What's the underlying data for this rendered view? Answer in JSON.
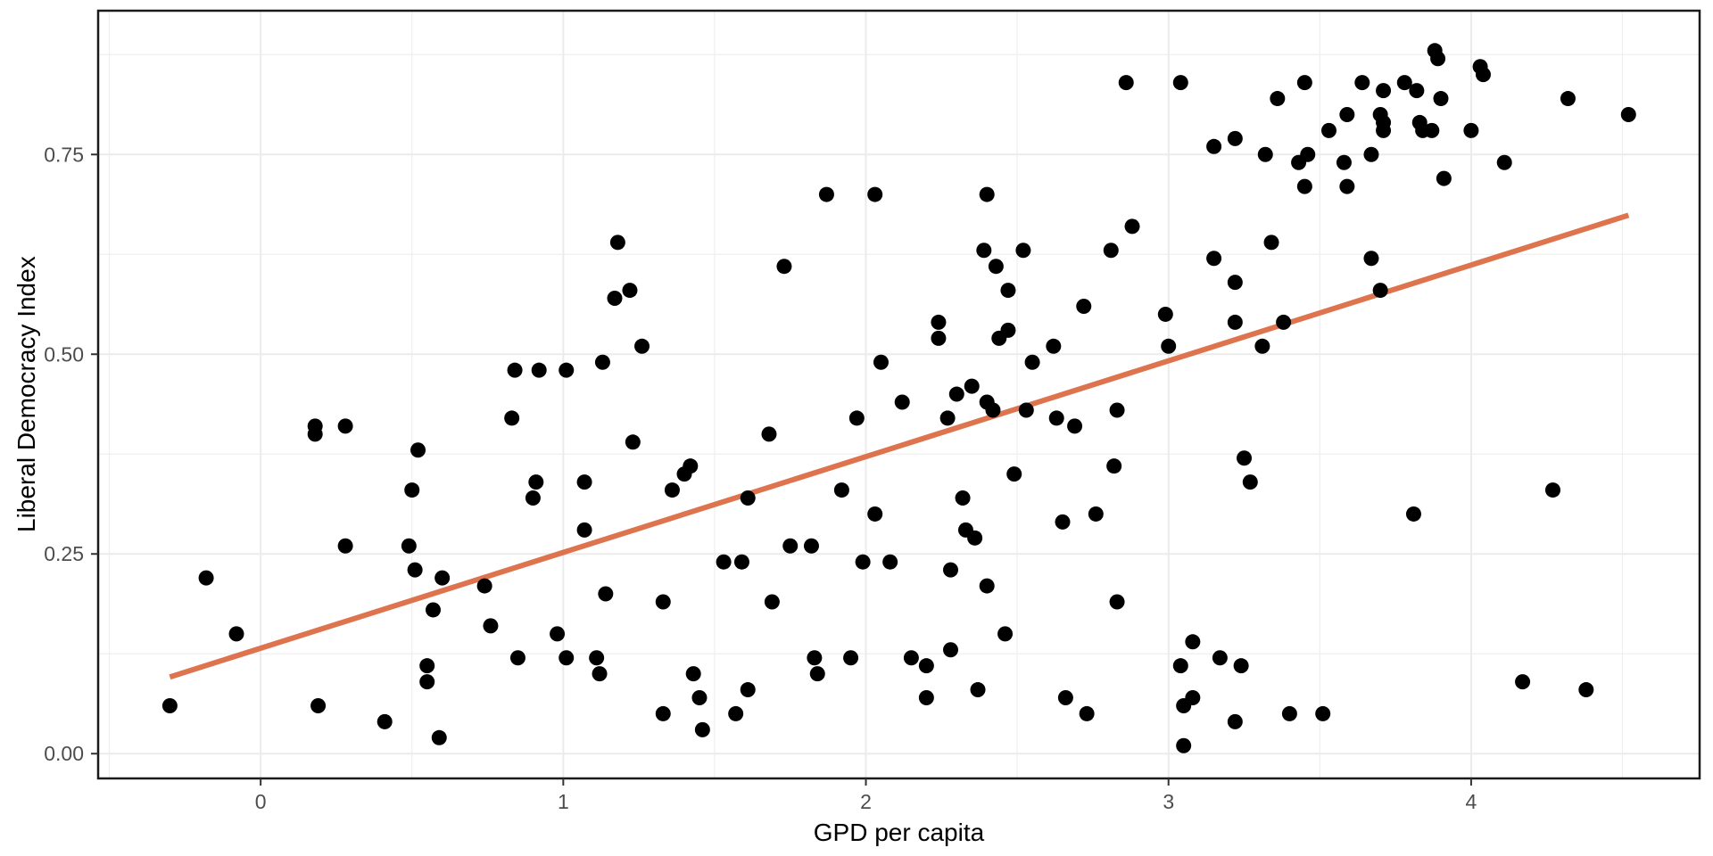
{
  "chart_data": {
    "type": "scatter",
    "title": "",
    "xlabel": "GPD per capita",
    "ylabel": "Liberal Democracy Index",
    "x_axis": {
      "label": "GPD per capita",
      "ticks": [
        0,
        1,
        2,
        3,
        4
      ],
      "tick_labels": [
        "0",
        "1",
        "2",
        "3",
        "4"
      ],
      "minor_ticks": [
        -0.5,
        0.5,
        1.5,
        2.5,
        3.5,
        4.5
      ],
      "range": [
        -0.537,
        4.755
      ]
    },
    "y_axis": {
      "label": "Liberal Democracy Index",
      "ticks": [
        0,
        0.25,
        0.5,
        0.75
      ],
      "tick_labels": [
        "0.00",
        "0.25",
        "0.50",
        "0.75"
      ],
      "minor_ticks": [
        0.125,
        0.375,
        0.625,
        0.875
      ],
      "range": [
        -0.031,
        0.93
      ]
    },
    "grid": true,
    "legend": false,
    "colors": {
      "point": "#000000",
      "trend_line": "#DE744E",
      "grid_major": "#EBEBEB",
      "grid_minor": "#EFEFEF",
      "panel_border": "#1A1A1A",
      "tick_mark": "#333333",
      "tick_label": "#4D4D4D",
      "background": "#FFFFFF"
    },
    "trend": {
      "x1": -0.3,
      "y1": 0.096,
      "x2": 4.52,
      "y2": 0.674
    },
    "points": [
      [
        1.87,
        0.7
      ],
      [
        2.03,
        0.7
      ],
      [
        1.18,
        0.64
      ],
      [
        1.73,
        0.61
      ],
      [
        2.86,
        0.84
      ],
      [
        3.04,
        0.84
      ],
      [
        3.36,
        0.82
      ],
      [
        3.15,
        0.76
      ],
      [
        3.22,
        0.77
      ],
      [
        3.32,
        0.75
      ],
      [
        2.4,
        0.7
      ],
      [
        2.88,
        0.66
      ],
      [
        2.39,
        0.63
      ],
      [
        2.52,
        0.63
      ],
      [
        2.81,
        0.63
      ],
      [
        3.15,
        0.62
      ],
      [
        3.34,
        0.64
      ],
      [
        3.45,
        0.71
      ],
      [
        3.88,
        0.88
      ],
      [
        3.89,
        0.87
      ],
      [
        4.03,
        0.86
      ],
      [
        4.04,
        0.85
      ],
      [
        3.45,
        0.84
      ],
      [
        3.64,
        0.84
      ],
      [
        3.71,
        0.83
      ],
      [
        3.78,
        0.84
      ],
      [
        3.82,
        0.83
      ],
      [
        3.9,
        0.82
      ],
      [
        4.32,
        0.82
      ],
      [
        3.59,
        0.8
      ],
      [
        4.52,
        0.8
      ],
      [
        3.7,
        0.8
      ],
      [
        3.71,
        0.79
      ],
      [
        3.71,
        0.78
      ],
      [
        3.53,
        0.78
      ],
      [
        3.83,
        0.79
      ],
      [
        3.84,
        0.78
      ],
      [
        3.87,
        0.78
      ],
      [
        4.0,
        0.78
      ],
      [
        3.46,
        0.75
      ],
      [
        3.67,
        0.75
      ],
      [
        3.43,
        0.74
      ],
      [
        3.58,
        0.74
      ],
      [
        4.11,
        0.74
      ],
      [
        3.91,
        0.72
      ],
      [
        3.59,
        0.71
      ],
      [
        3.67,
        0.62
      ],
      [
        0.18,
        0.41
      ],
      [
        0.18,
        0.4
      ],
      [
        0.28,
        0.41
      ],
      [
        0.52,
        0.38
      ],
      [
        0.5,
        0.33
      ],
      [
        1.22,
        0.58
      ],
      [
        1.17,
        0.57
      ],
      [
        1.26,
        0.51
      ],
      [
        1.13,
        0.49
      ],
      [
        0.84,
        0.48
      ],
      [
        0.92,
        0.48
      ],
      [
        1.01,
        0.48
      ],
      [
        0.83,
        0.42
      ],
      [
        1.23,
        0.39
      ],
      [
        1.68,
        0.4
      ],
      [
        1.97,
        0.42
      ],
      [
        2.05,
        0.49
      ],
      [
        2.12,
        0.44
      ],
      [
        1.42,
        0.36
      ],
      [
        1.4,
        0.35
      ],
      [
        1.36,
        0.33
      ],
      [
        1.07,
        0.34
      ],
      [
        0.91,
        0.34
      ],
      [
        0.9,
        0.32
      ],
      [
        1.61,
        0.32
      ],
      [
        1.92,
        0.33
      ],
      [
        2.03,
        0.3
      ],
      [
        2.43,
        0.61
      ],
      [
        2.47,
        0.58
      ],
      [
        2.72,
        0.56
      ],
      [
        2.99,
        0.55
      ],
      [
        2.24,
        0.54
      ],
      [
        2.47,
        0.53
      ],
      [
        2.44,
        0.52
      ],
      [
        2.24,
        0.52
      ],
      [
        3.22,
        0.59
      ],
      [
        3.22,
        0.54
      ],
      [
        3.0,
        0.51
      ],
      [
        3.38,
        0.54
      ],
      [
        3.31,
        0.51
      ],
      [
        2.62,
        0.51
      ],
      [
        2.55,
        0.49
      ],
      [
        2.35,
        0.46
      ],
      [
        2.3,
        0.45
      ],
      [
        2.4,
        0.44
      ],
      [
        2.42,
        0.43
      ],
      [
        2.27,
        0.42
      ],
      [
        2.53,
        0.43
      ],
      [
        2.63,
        0.42
      ],
      [
        2.69,
        0.41
      ],
      [
        2.83,
        0.43
      ],
      [
        3.25,
        0.37
      ],
      [
        3.27,
        0.34
      ],
      [
        2.49,
        0.35
      ],
      [
        2.82,
        0.36
      ],
      [
        2.32,
        0.32
      ],
      [
        2.76,
        0.3
      ],
      [
        3.7,
        0.58
      ],
      [
        4.27,
        0.33
      ],
      [
        3.81,
        0.3
      ],
      [
        0.28,
        0.26
      ],
      [
        0.49,
        0.26
      ],
      [
        -0.18,
        0.22
      ],
      [
        0.51,
        0.23
      ],
      [
        0.6,
        0.22
      ],
      [
        0.74,
        0.21
      ],
      [
        0.57,
        0.18
      ],
      [
        0.76,
        0.16
      ],
      [
        -0.08,
        0.15
      ],
      [
        0.55,
        0.11
      ],
      [
        0.55,
        0.09
      ],
      [
        -0.3,
        0.06
      ],
      [
        0.19,
        0.06
      ],
      [
        0.41,
        0.04
      ],
      [
        0.59,
        0.02
      ],
      [
        1.07,
        0.28
      ],
      [
        1.53,
        0.24
      ],
      [
        1.59,
        0.24
      ],
      [
        1.75,
        0.26
      ],
      [
        1.82,
        0.26
      ],
      [
        1.99,
        0.24
      ],
      [
        2.08,
        0.24
      ],
      [
        1.14,
        0.2
      ],
      [
        1.33,
        0.19
      ],
      [
        1.69,
        0.19
      ],
      [
        0.98,
        0.15
      ],
      [
        0.85,
        0.12
      ],
      [
        1.01,
        0.12
      ],
      [
        1.11,
        0.12
      ],
      [
        1.12,
        0.1
      ],
      [
        1.43,
        0.1
      ],
      [
        1.45,
        0.07
      ],
      [
        1.61,
        0.08
      ],
      [
        1.57,
        0.05
      ],
      [
        1.33,
        0.05
      ],
      [
        1.46,
        0.03
      ],
      [
        1.83,
        0.12
      ],
      [
        1.84,
        0.1
      ],
      [
        1.95,
        0.12
      ],
      [
        2.65,
        0.29
      ],
      [
        2.33,
        0.28
      ],
      [
        2.36,
        0.27
      ],
      [
        2.28,
        0.23
      ],
      [
        2.4,
        0.21
      ],
      [
        2.83,
        0.19
      ],
      [
        2.46,
        0.15
      ],
      [
        2.28,
        0.13
      ],
      [
        2.15,
        0.12
      ],
      [
        2.2,
        0.11
      ],
      [
        2.37,
        0.08
      ],
      [
        2.2,
        0.07
      ],
      [
        2.66,
        0.07
      ],
      [
        2.73,
        0.05
      ],
      [
        3.08,
        0.14
      ],
      [
        3.04,
        0.11
      ],
      [
        3.17,
        0.12
      ],
      [
        3.24,
        0.11
      ],
      [
        3.05,
        0.06
      ],
      [
        3.08,
        0.07
      ],
      [
        3.22,
        0.04
      ],
      [
        3.4,
        0.05
      ],
      [
        3.05,
        0.01
      ],
      [
        3.51,
        0.05
      ],
      [
        4.17,
        0.09
      ],
      [
        4.38,
        0.08
      ]
    ]
  }
}
